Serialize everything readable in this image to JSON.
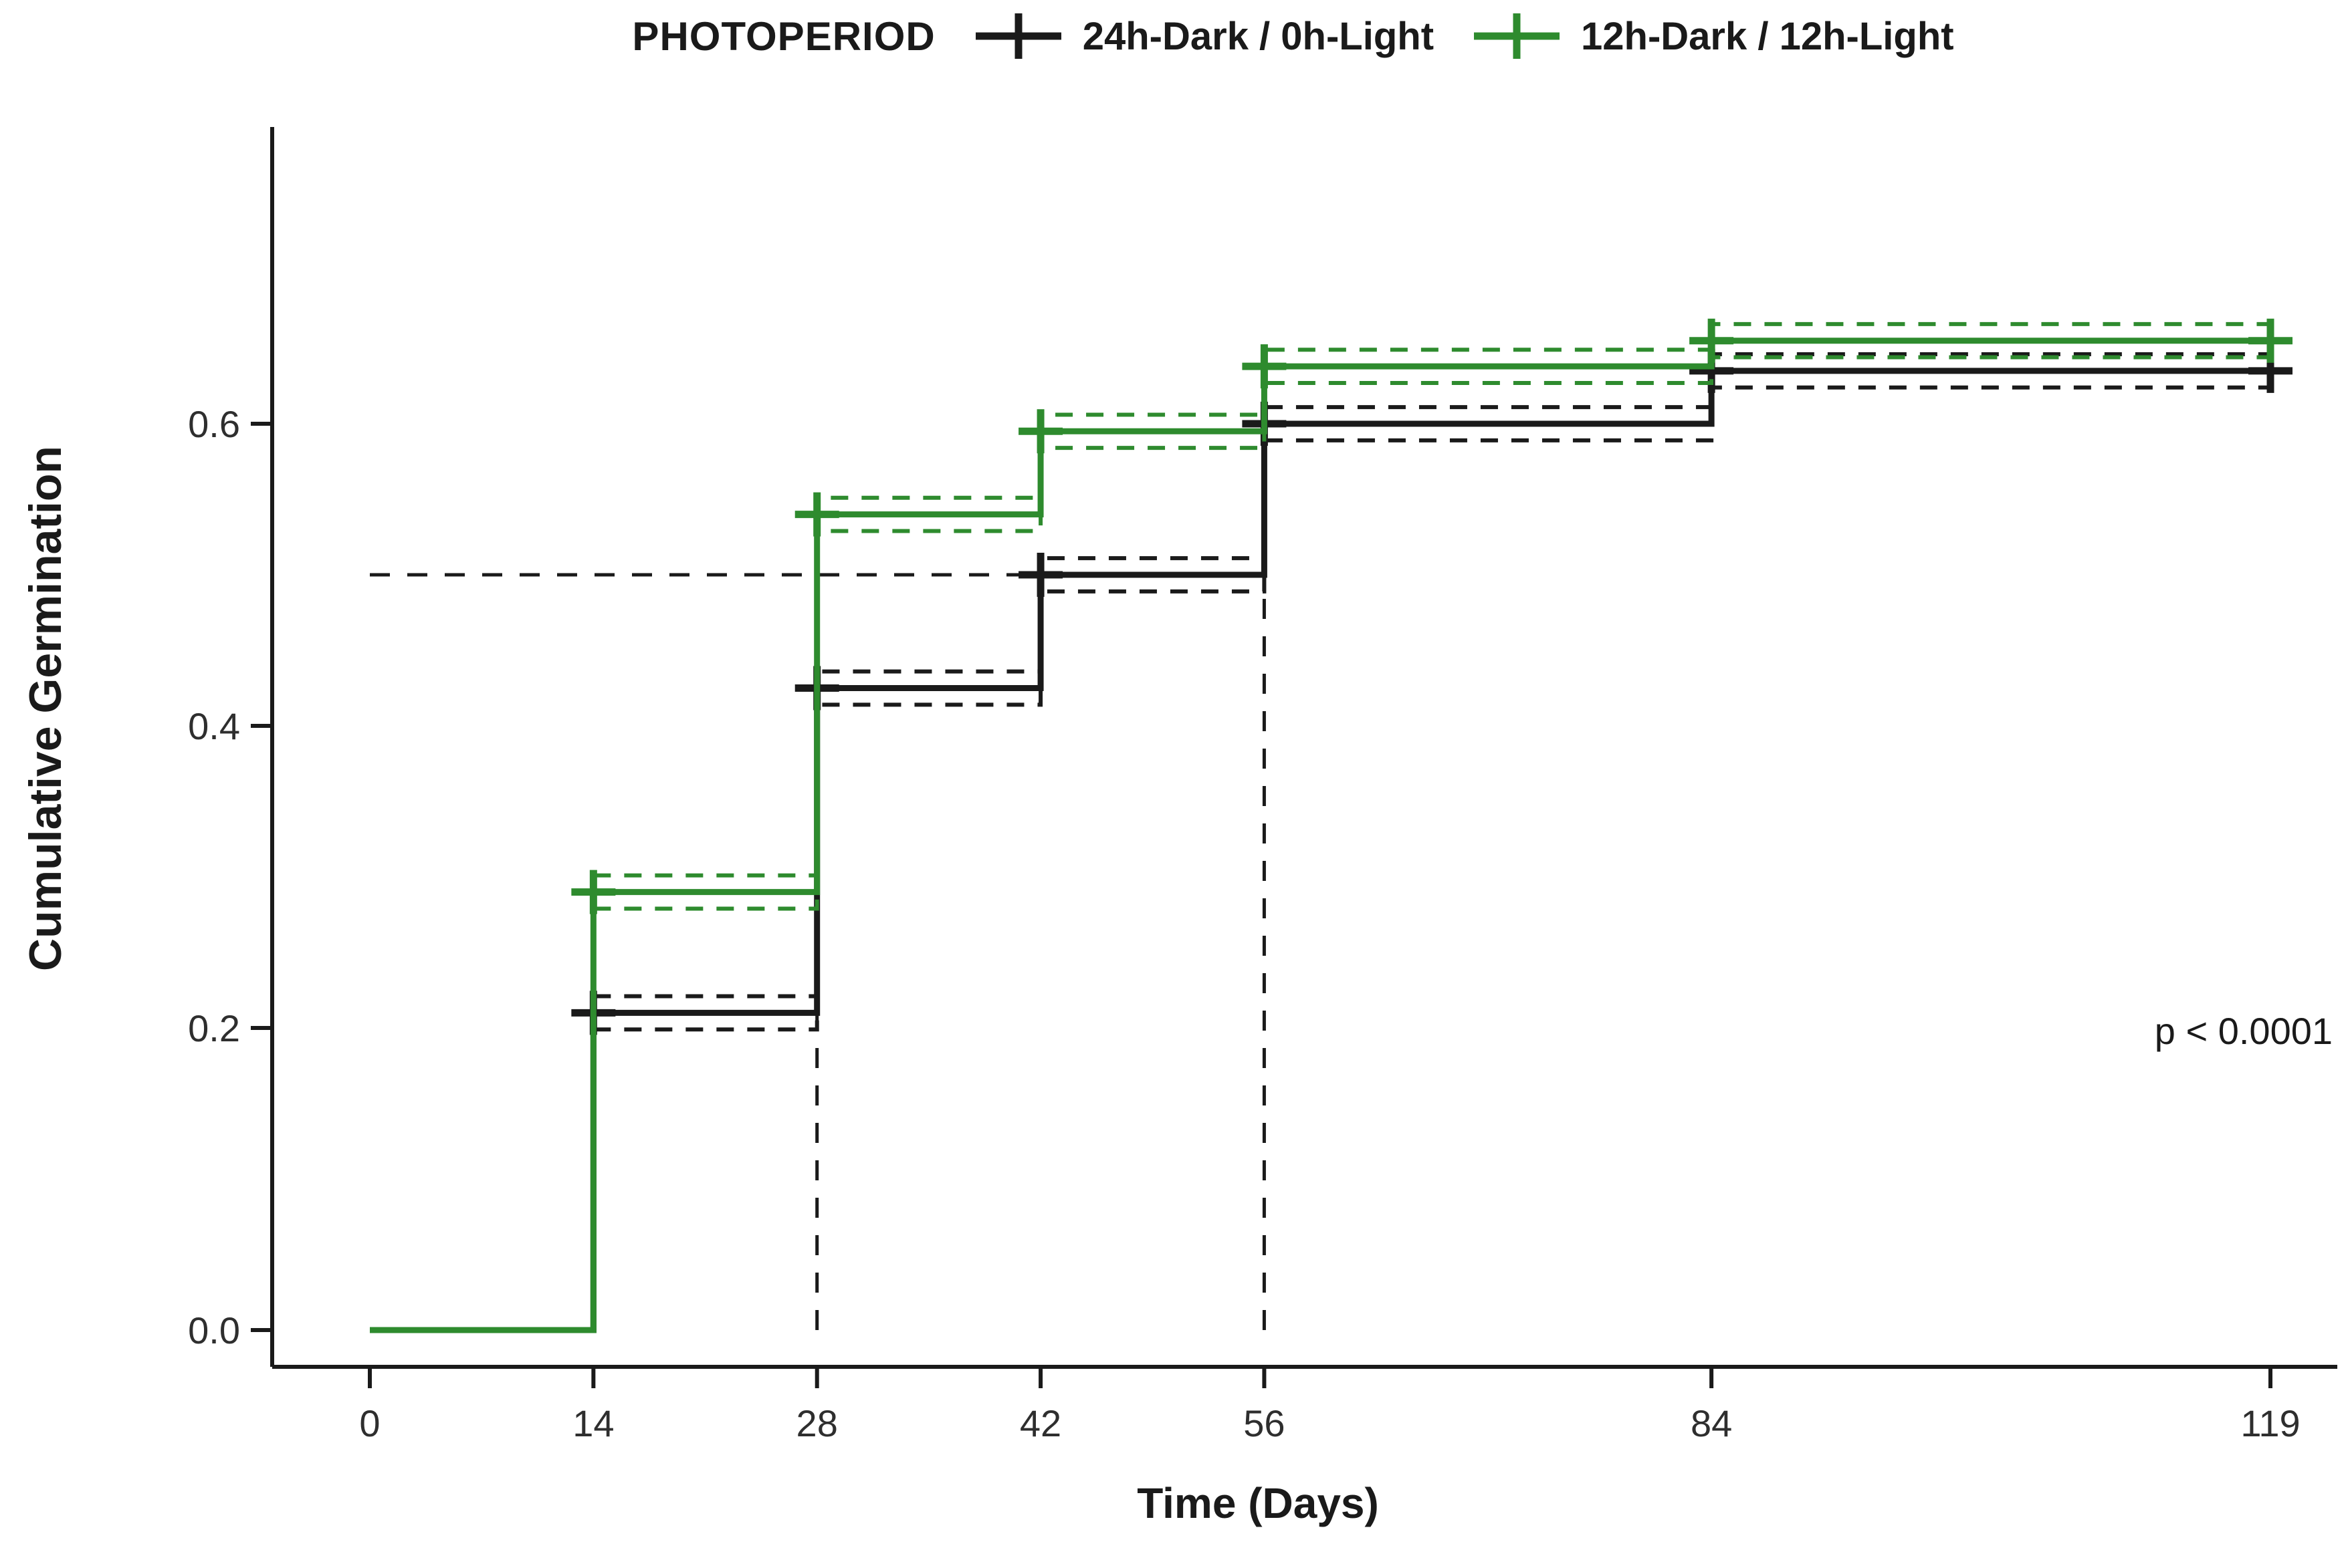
{
  "figure": {
    "background": "#ffffff"
  },
  "legend": {
    "title": "PHOTOPERIOD",
    "items": [
      {
        "label": "24h-Dark / 0h-Light",
        "color": "#1a1a1a"
      },
      {
        "label": "12h-Dark / 12h-Light",
        "color": "#2e8b2e"
      }
    ]
  },
  "axes": {
    "x_title": "Time (Days)",
    "y_title": "Cumulative Germination",
    "x_tick_labels": [
      "0",
      "14",
      "28",
      "42",
      "56",
      "84",
      "119"
    ],
    "y_tick_labels": [
      "0.0",
      "0.2",
      "0.4",
      "0.6"
    ]
  },
  "annotation": {
    "p_value": "p < 0.0001"
  },
  "chart_data": {
    "type": "line",
    "subtype": "kaplan-meier-step",
    "title": "",
    "xlabel": "Time (Days)",
    "ylabel": "Cumulative Germination",
    "x_ticks": [
      0,
      14,
      28,
      42,
      56,
      84,
      119
    ],
    "y_ticks": [
      0.0,
      0.2,
      0.4,
      0.6
    ],
    "xlim": [
      0,
      119
    ],
    "ylim": [
      0,
      0.79
    ],
    "grid": false,
    "legend_position": "top",
    "legend_title": "PHOTOPERIOD",
    "series": [
      {
        "name": "24h-Dark / 0h-Light",
        "color": "#1a1a1a",
        "step_times": [
          0,
          14,
          28,
          42,
          56,
          84
        ],
        "values": [
          0,
          0.21,
          0.425,
          0.5,
          0.6,
          0.635
        ],
        "end_time": 119,
        "ci_times": [
          14,
          28,
          42,
          56,
          84
        ],
        "ci_upper": [
          0.221,
          0.436,
          0.511,
          0.611,
          0.646
        ],
        "ci_lower": [
          0.199,
          0.414,
          0.489,
          0.589,
          0.624
        ],
        "censor_points": [
          [
            14,
            0.21
          ],
          [
            28,
            0.425
          ],
          [
            42,
            0.5
          ],
          [
            56,
            0.6
          ],
          [
            84,
            0.635
          ],
          [
            119,
            0.635
          ]
        ]
      },
      {
        "name": "12h-Dark / 12h-Light",
        "color": "#2e8b2e",
        "step_times": [
          0,
          14,
          28,
          42,
          56,
          84
        ],
        "values": [
          0,
          0.29,
          0.54,
          0.595,
          0.638,
          0.655
        ],
        "end_time": 119,
        "ci_times": [
          14,
          28,
          42,
          56,
          84
        ],
        "ci_upper": [
          0.301,
          0.551,
          0.606,
          0.649,
          0.666
        ],
        "ci_lower": [
          0.279,
          0.529,
          0.584,
          0.627,
          0.644
        ],
        "censor_points": [
          [
            14,
            0.29
          ],
          [
            28,
            0.54
          ],
          [
            42,
            0.595
          ],
          [
            56,
            0.638
          ],
          [
            84,
            0.655
          ],
          [
            119,
            0.655
          ]
        ]
      }
    ],
    "median_lines": {
      "horizontal": {
        "y": 0.5,
        "x0": 0,
        "x1": 56
      },
      "vertical": [
        {
          "x": 28,
          "y0": 0,
          "y1": 0.5
        },
        {
          "x": 56,
          "y0": 0,
          "y1": 0.5
        }
      ],
      "color": "#1a1a1a"
    },
    "annotations": [
      {
        "text": "p < 0.0001",
        "x": 114,
        "y": 0.2,
        "align": "right"
      }
    ]
  }
}
